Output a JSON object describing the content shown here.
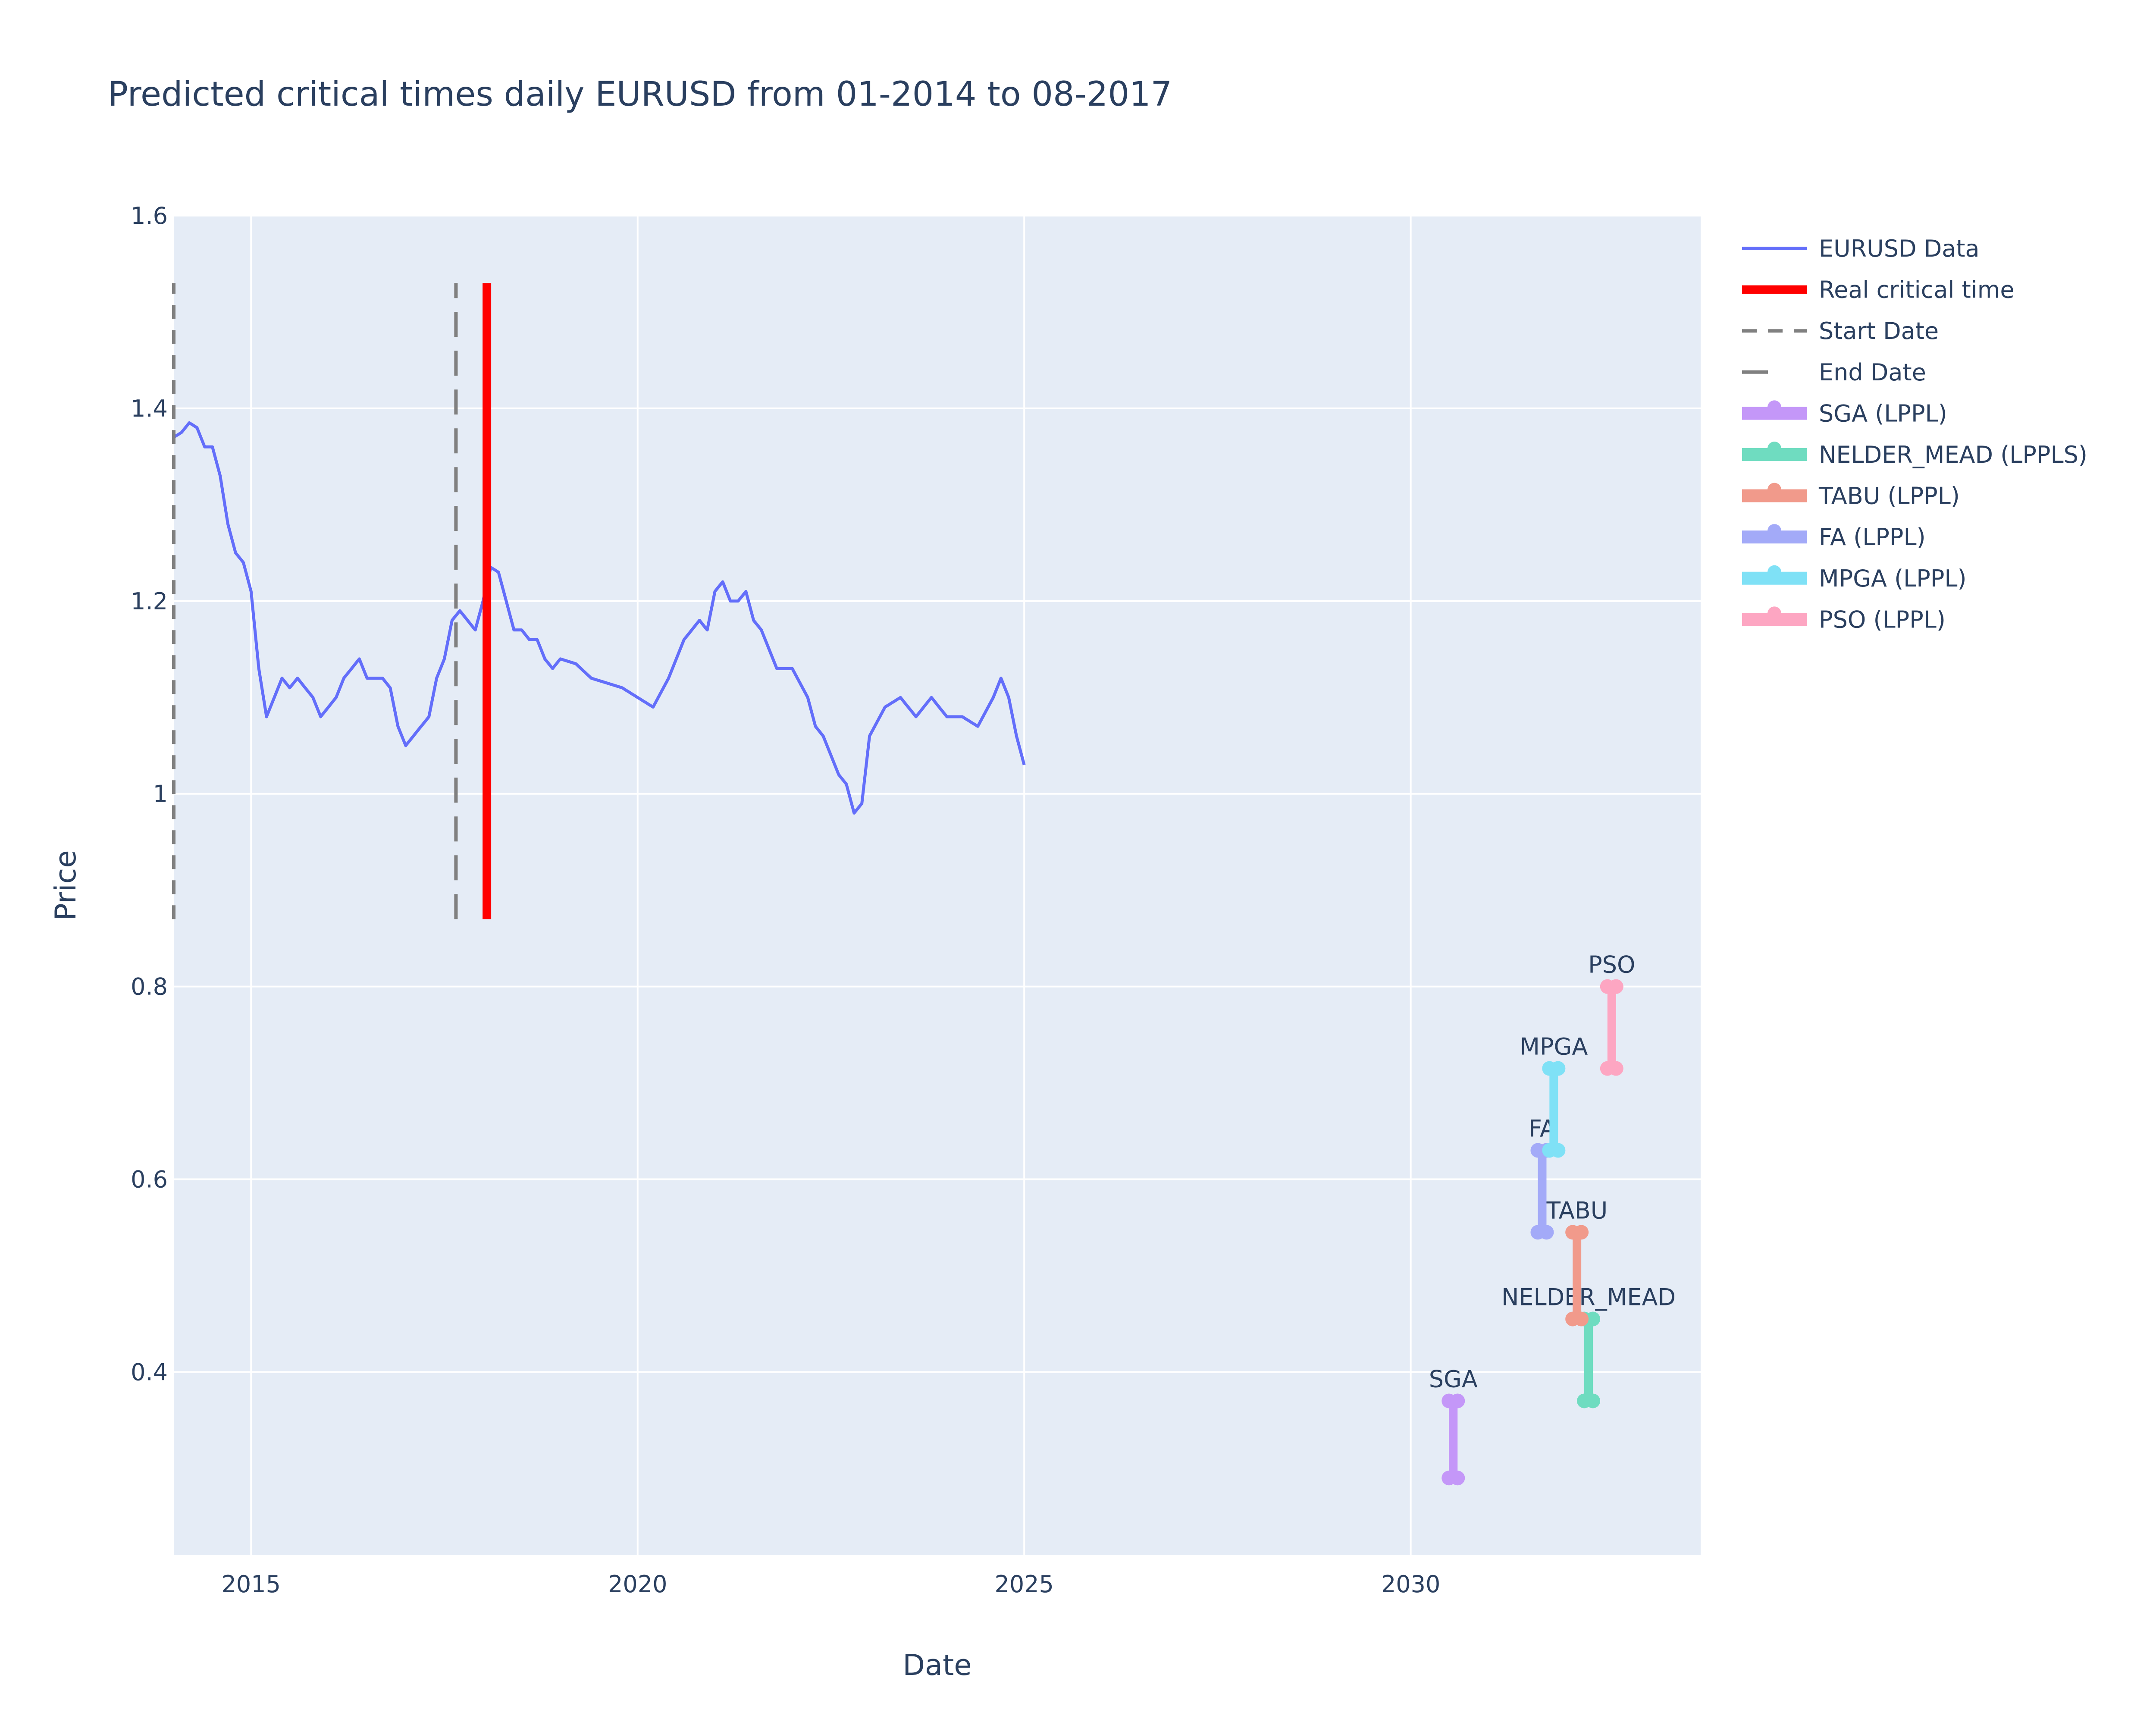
{
  "chart_data": {
    "type": "line",
    "title": "Predicted critical times daily EURUSD from 01-2014 to 08-2017",
    "xlabel": "Date",
    "ylabel": "Price",
    "xlim": [
      2014.0,
      2033.75
    ],
    "ylim": [
      0.21,
      1.6
    ],
    "x_ticks": [
      2015,
      2020,
      2025,
      2030
    ],
    "x_tick_labels": [
      "2015",
      "2020",
      "2025",
      "2030"
    ],
    "y_ticks": [
      0.4,
      0.6,
      0.8,
      1.0,
      1.2,
      1.4,
      1.6
    ],
    "y_tick_labels": [
      "0.4",
      "0.6",
      "0.8",
      "1",
      "1.2",
      "1.4",
      "1.6"
    ],
    "grid": true,
    "legend_position": "right",
    "colors": {
      "plot_background": "#E5ECF6",
      "grid": "#ffffff",
      "text": "#2a3f5f"
    },
    "series": [
      {
        "name": "EURUSD Data",
        "style": "line",
        "color": "#636EFA",
        "x": [
          2014.0,
          2014.1,
          2014.2,
          2014.3,
          2014.4,
          2014.5,
          2014.6,
          2014.7,
          2014.8,
          2014.9,
          2015.0,
          2015.1,
          2015.2,
          2015.3,
          2015.4,
          2015.5,
          2015.6,
          2015.7,
          2015.8,
          2015.9,
          2016.0,
          2016.1,
          2016.2,
          2016.3,
          2016.4,
          2016.5,
          2016.6,
          2016.7,
          2016.8,
          2016.9,
          2017.0,
          2017.1,
          2017.2,
          2017.3,
          2017.4,
          2017.5,
          2017.6,
          2017.7,
          2017.8,
          2017.9,
          2018.0,
          2018.1,
          2018.2,
          2018.3,
          2018.4,
          2018.5,
          2018.6,
          2018.7,
          2018.8,
          2018.9,
          2019.0,
          2019.2,
          2019.4,
          2019.6,
          2019.8,
          2020.0,
          2020.2,
          2020.4,
          2020.6,
          2020.8,
          2020.9,
          2021.0,
          2021.1,
          2021.2,
          2021.3,
          2021.4,
          2021.5,
          2021.6,
          2021.8,
          2022.0,
          2022.2,
          2022.3,
          2022.4,
          2022.5,
          2022.6,
          2022.7,
          2022.8,
          2022.9,
          2023.0,
          2023.2,
          2023.4,
          2023.6,
          2023.8,
          2024.0,
          2024.2,
          2024.4,
          2024.6,
          2024.7,
          2024.8,
          2024.9,
          2025.0
        ],
        "y": [
          1.37,
          1.375,
          1.385,
          1.38,
          1.36,
          1.36,
          1.33,
          1.28,
          1.25,
          1.24,
          1.21,
          1.13,
          1.08,
          1.1,
          1.12,
          1.11,
          1.12,
          1.11,
          1.1,
          1.08,
          1.09,
          1.1,
          1.12,
          1.13,
          1.14,
          1.12,
          1.12,
          1.12,
          1.11,
          1.07,
          1.05,
          1.06,
          1.07,
          1.08,
          1.12,
          1.14,
          1.18,
          1.19,
          1.18,
          1.17,
          1.2,
          1.235,
          1.23,
          1.2,
          1.17,
          1.17,
          1.16,
          1.16,
          1.14,
          1.13,
          1.14,
          1.135,
          1.12,
          1.115,
          1.11,
          1.1,
          1.09,
          1.12,
          1.16,
          1.18,
          1.17,
          1.21,
          1.22,
          1.2,
          1.2,
          1.21,
          1.18,
          1.17,
          1.13,
          1.13,
          1.1,
          1.07,
          1.06,
          1.04,
          1.02,
          1.01,
          0.98,
          0.99,
          1.06,
          1.09,
          1.1,
          1.08,
          1.1,
          1.08,
          1.08,
          1.07,
          1.1,
          1.12,
          1.1,
          1.06,
          1.03
        ]
      },
      {
        "name": "Real critical time",
        "style": "vline-solid-thick",
        "color": "#FF0000",
        "x": [
          2018.05,
          2018.05
        ],
        "y": [
          0.87,
          1.53
        ]
      },
      {
        "name": "Start Date",
        "style": "vline-dash",
        "color": "#808080",
        "x": [
          2014.0,
          2014.0
        ],
        "y": [
          0.87,
          1.53
        ]
      },
      {
        "name": "End Date",
        "style": "vline-longdash",
        "color": "#808080",
        "x": [
          2017.65,
          2017.65
        ],
        "y": [
          0.87,
          1.53
        ]
      }
    ],
    "predictions": [
      {
        "name": "SGA (LPPL)",
        "label": "SGA",
        "color": "#C497F8",
        "x": 2030.55,
        "y_low": 0.29,
        "y_high": 0.37
      },
      {
        "name": "NELDER_MEAD (LPPLS)",
        "label": "NELDER_MEAD",
        "color": "#6FDCC0",
        "x": 2032.3,
        "y_low": 0.37,
        "y_high": 0.455
      },
      {
        "name": "TABU (LPPL)",
        "label": "TABU",
        "color": "#F19A8B",
        "x": 2032.15,
        "y_low": 0.455,
        "y_high": 0.545
      },
      {
        "name": "FA (LPPL)",
        "label": "FA",
        "color": "#A3AAF8",
        "x": 2031.7,
        "y_low": 0.545,
        "y_high": 0.63
      },
      {
        "name": "MPGA (LPPL)",
        "label": "MPGA",
        "color": "#7FE1F6",
        "x": 2031.85,
        "y_low": 0.63,
        "y_high": 0.715
      },
      {
        "name": "PSO (LPPL)",
        "label": "PSO",
        "color": "#FDA6C2",
        "x": 2032.6,
        "y_low": 0.715,
        "y_high": 0.8
      }
    ]
  }
}
